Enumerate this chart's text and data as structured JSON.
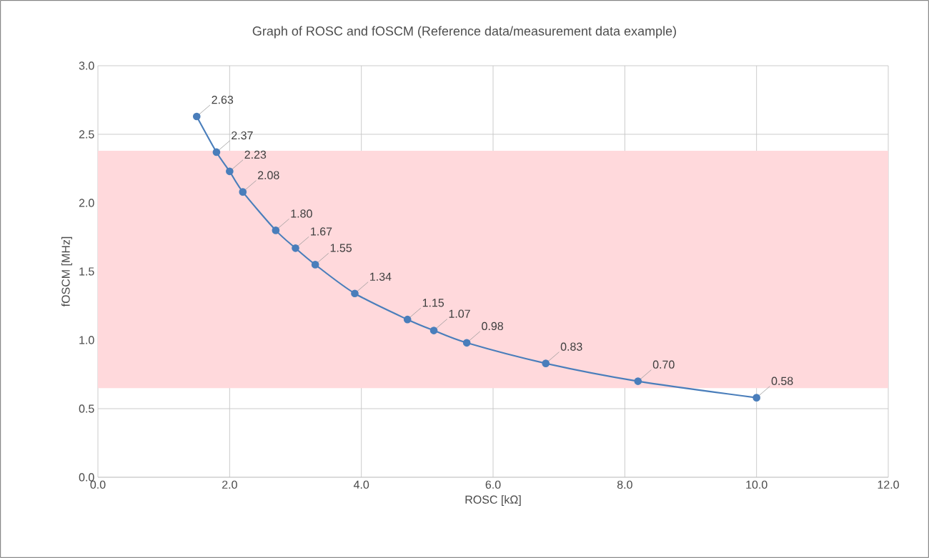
{
  "chart_data": {
    "type": "line",
    "title": "Graph of ROSC and fOSCM (Reference data/measurement data example)",
    "xlabel": "ROSC [kΩ]",
    "ylabel": "fOSCM [MHz]",
    "x": [
      1.5,
      1.8,
      2.0,
      2.2,
      2.7,
      3.0,
      3.3,
      3.9,
      4.7,
      5.1,
      5.6,
      6.8,
      8.2,
      10.0
    ],
    "series": [
      {
        "color": "#4a7ebb",
        "values": [
          2.63,
          2.37,
          2.23,
          2.08,
          1.8,
          1.67,
          1.55,
          1.34,
          1.15,
          1.07,
          0.98,
          0.83,
          0.7,
          0.58
        ],
        "value_labels": [
          "2.63",
          "2.37",
          "2.23",
          "2.08",
          "1.80",
          "1.67",
          "1.55",
          "1.34",
          "1.15",
          "1.07",
          "0.98",
          "0.83",
          "0.70",
          "0.58"
        ]
      }
    ],
    "xlim": [
      0,
      12
    ],
    "ylim": [
      0,
      3
    ],
    "xticks": [
      {
        "value": 0,
        "label": "0.0"
      },
      {
        "value": 2,
        "label": "2.0"
      },
      {
        "value": 4,
        "label": "4.0"
      },
      {
        "value": 6,
        "label": "6.0"
      },
      {
        "value": 8,
        "label": "8.0"
      },
      {
        "value": 10,
        "label": "10.0"
      },
      {
        "value": 12,
        "label": "12.0"
      }
    ],
    "yticks": [
      {
        "value": 0,
        "label": "0.0"
      },
      {
        "value": 0.5,
        "label": "0.5"
      },
      {
        "value": 1,
        "label": "1.0"
      },
      {
        "value": 1.5,
        "label": "1.5"
      },
      {
        "value": 2,
        "label": "2.0"
      },
      {
        "value": 2.5,
        "label": "2.5"
      },
      {
        "value": 3,
        "label": "3.0"
      }
    ],
    "bands": [
      {
        "axis": "y",
        "from": 0.65,
        "to": 2.38,
        "color": "#ffd9dc"
      }
    ],
    "grid": true,
    "marker": "circle",
    "line_style": "solid"
  }
}
